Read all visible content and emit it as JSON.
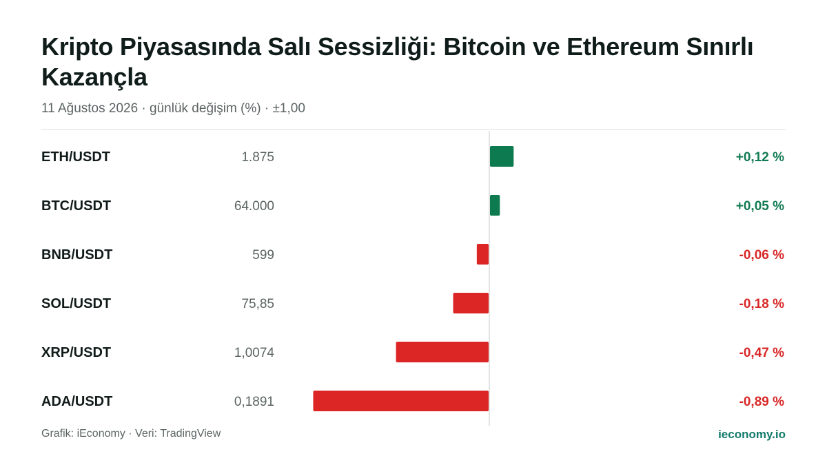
{
  "header": {
    "title": "Kripto Piyasasında Salı Sessizliği: Bitcoin ve Ethereum Sınırlı Kazançla",
    "subtitle": "11 Ağustos 2026 · günlük değişim (%) · ±1,00"
  },
  "footer": {
    "credit": "Grafik: iEconomy · Veri: TradingView",
    "brand": "ieconomy.io"
  },
  "colors": {
    "positive": "#0d7a4f",
    "negative": "#dc2626",
    "positive_text": "#127a52",
    "negative_text": "#d92626",
    "axis": "#d9dcdc"
  },
  "chart_data": {
    "type": "bar",
    "orientation": "horizontal",
    "categories": [
      "ETH/USDT",
      "BTC/USDT",
      "BNB/USDT",
      "SOL/USDT",
      "XRP/USDT",
      "ADA/USDT"
    ],
    "prices": [
      "1.875",
      "64.000",
      "599",
      "75,85",
      "1,0074",
      "0,1891"
    ],
    "values": [
      0.12,
      0.05,
      -0.06,
      -0.18,
      -0.47,
      -0.89
    ],
    "value_labels": [
      "+0,12 %",
      "+0,05 %",
      "-0,06 %",
      "-0,18 %",
      "-0,47 %",
      "-0,89 %"
    ],
    "xlim": [
      -1.0,
      1.0
    ],
    "grid": false
  }
}
